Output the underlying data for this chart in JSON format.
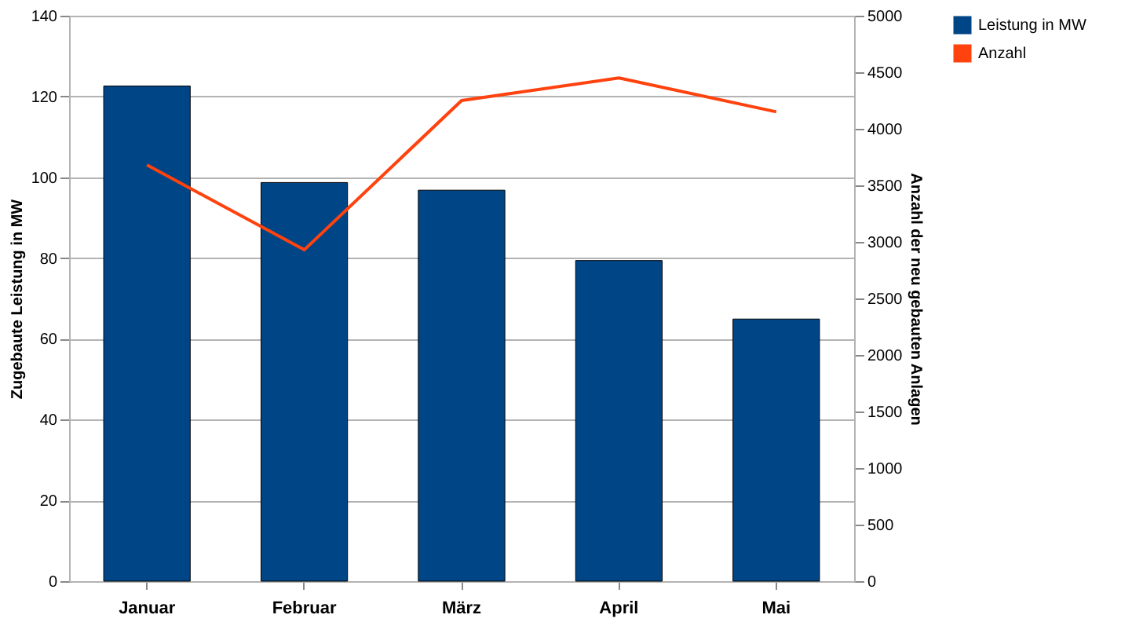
{
  "chart_data": {
    "type": "bar",
    "categories": [
      "Januar",
      "Februar",
      "März",
      "April",
      "Mai"
    ],
    "series": [
      {
        "name": "Leistung in MW",
        "color": "#004586",
        "values": [
          122.6,
          98.7,
          96.8,
          79.4,
          64.9
        ]
      },
      {
        "name": "Anzahl",
        "type": "line",
        "axis": "y2",
        "color": "#ff420e",
        "values": [
          3680,
          2930,
          4250,
          4450,
          4150
        ]
      }
    ],
    "ylabel": "Zugebaute Leistung in MW",
    "y2label": "Anzahl der neu gebauten Anlagen",
    "ylim": [
      0,
      140
    ],
    "yticks": [
      0,
      20,
      40,
      60,
      80,
      100,
      120,
      140
    ],
    "y2lim": [
      0,
      5000
    ],
    "y2ticks": [
      0,
      500,
      1000,
      1500,
      2000,
      2500,
      3000,
      3500,
      4000,
      4500,
      5000
    ],
    "grid": "y",
    "legend": "right",
    "marker": "none"
  }
}
